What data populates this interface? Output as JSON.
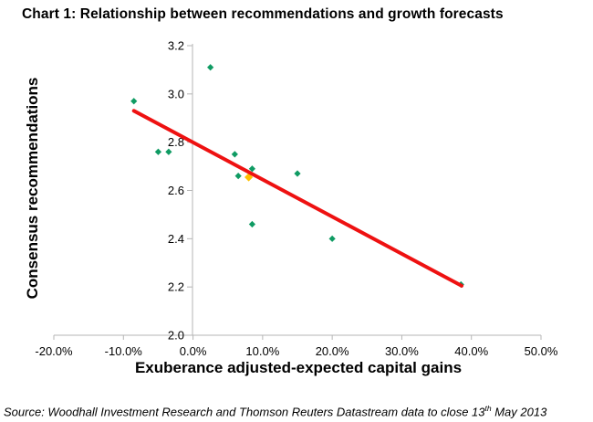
{
  "title": "Chart 1: Relationship between recommendations and growth forecasts",
  "source": {
    "prefix": "Source: Woodhall Investment Research and Thomson Reuters Datastream data to close 13",
    "superscript": "th",
    "suffix": " May 2013"
  },
  "colors": {
    "marker_teal": "#0f9b63",
    "marker_orange": "#ffc000",
    "trendline_red": "#ee1111",
    "axis_gray": "#b5b5b5",
    "text_black": "#000000"
  },
  "chart_data": {
    "type": "scatter",
    "title": "Chart 1: Relationship between recommendations and growth forecasts",
    "xlabel": "Exuberance adjusted-expected capital gains",
    "ylabel": "Consensus recommendations",
    "xlim": [
      -20,
      50
    ],
    "ylim": [
      2.0,
      3.2
    ],
    "x_unit": "percent",
    "grid": false,
    "legend": "none",
    "x_ticks": [
      {
        "value": -20,
        "label": "-20.0%"
      },
      {
        "value": -10,
        "label": "-10.0%"
      },
      {
        "value": 0,
        "label": "0.0%"
      },
      {
        "value": 10,
        "label": "10.0%"
      },
      {
        "value": 20,
        "label": "20.0%"
      },
      {
        "value": 30,
        "label": "30.0%"
      },
      {
        "value": 40,
        "label": "40.0%"
      },
      {
        "value": 50,
        "label": "50.0%"
      }
    ],
    "y_ticks": [
      {
        "value": 3.2,
        "label": "3.2"
      },
      {
        "value": 3.0,
        "label": "3.0"
      },
      {
        "value": 2.8,
        "label": "2.8"
      },
      {
        "value": 2.6,
        "label": "2.6"
      },
      {
        "value": 2.4,
        "label": "2.4"
      },
      {
        "value": 2.2,
        "label": "2.2"
      },
      {
        "value": 2.0,
        "label": "2.0"
      }
    ],
    "series": [
      {
        "name": "consensus-recommendations",
        "marker": "diamond",
        "color": "#0f9b63",
        "size": 3.6,
        "points": [
          [
            -8.5,
            2.97
          ],
          [
            -5.0,
            2.76
          ],
          [
            -3.5,
            2.76
          ],
          [
            2.5,
            3.11
          ],
          [
            6.0,
            2.75
          ],
          [
            8.5,
            2.69
          ],
          [
            6.5,
            2.66
          ],
          [
            15.0,
            2.67
          ],
          [
            8.5,
            2.46
          ],
          [
            20.0,
            2.4
          ],
          [
            38.5,
            2.21
          ]
        ]
      },
      {
        "name": "highlighted-point",
        "marker": "diamond",
        "color": "#ffc000",
        "size": 4.6,
        "points": [
          [
            8.0,
            2.655
          ]
        ]
      }
    ],
    "trendline": {
      "x1": -8.5,
      "y1": 2.93,
      "x2": 38.6,
      "y2": 2.205,
      "color": "#ee1111",
      "width": 4
    }
  }
}
